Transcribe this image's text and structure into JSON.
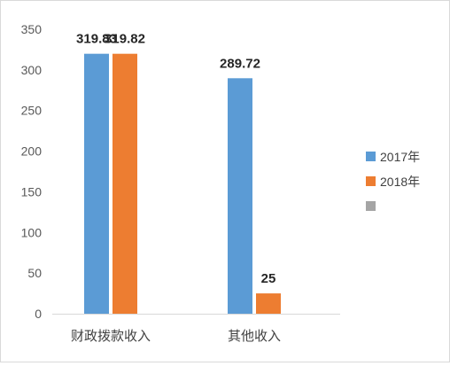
{
  "chart_data": {
    "type": "bar",
    "categories": [
      "财政拨款收入",
      "其他收入"
    ],
    "series": [
      {
        "name": "2017年",
        "values": [
          319.83,
          289.72
        ],
        "color": "#5b9bd5"
      },
      {
        "name": "2018年",
        "values": [
          319.82,
          25
        ],
        "color": "#ed7d31"
      },
      {
        "name": "",
        "values": [
          null,
          null
        ],
        "color": "#a5a5a5"
      }
    ],
    "data_labels": [
      [
        "319.83",
        "289.72"
      ],
      [
        "319.82",
        "25"
      ]
    ],
    "ylim": [
      0,
      350
    ],
    "yticks": [
      0,
      50,
      100,
      150,
      200,
      250,
      300,
      350
    ],
    "legend_position": "right",
    "grid": false
  }
}
